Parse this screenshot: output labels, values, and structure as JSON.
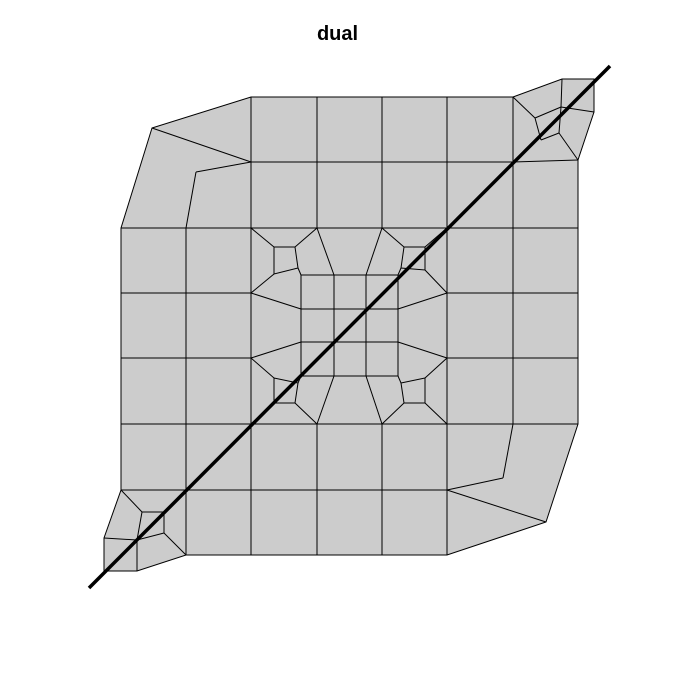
{
  "figure": {
    "title": "dual"
  },
  "style": {
    "cell_fill": "#cccccc",
    "cell_stroke": "#000000",
    "cutting_line_color": "#000000"
  }
}
